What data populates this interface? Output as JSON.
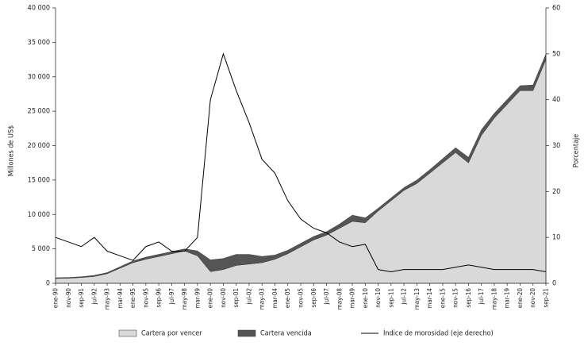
{
  "chart_data": {
    "type": "stacked_area_line",
    "ylabel": "Millones de US$",
    "y2label": "Porcentaje",
    "categories": [
      "ene-90",
      "nov-90",
      "sep-91",
      "jul-92",
      "may-93",
      "mar-94",
      "ene-95",
      "nov-95",
      "sep-96",
      "jul-97",
      "may-98",
      "mar-99",
      "ene-00",
      "nov-00",
      "sep-01",
      "jul-02",
      "may-03",
      "mar-04",
      "ene-05",
      "nov-05",
      "sep-06",
      "jul-07",
      "may-08",
      "mar-09",
      "ene-10",
      "nov-10",
      "sep-11",
      "jul-12",
      "may-13",
      "mar-14",
      "ene-15",
      "nov-15",
      "sep-16",
      "jul-17",
      "may-18",
      "mar-19",
      "ene-20",
      "nov-20",
      "sep-21"
    ],
    "series": [
      {
        "name": "Cartera por vencer",
        "color": "#d9d9d9",
        "stack": true,
        "values": [
          700,
          750,
          850,
          1000,
          1400,
          2200,
          3000,
          3500,
          3900,
          4300,
          4700,
          4000,
          1700,
          2000,
          2600,
          2800,
          3000,
          3500,
          4300,
          5300,
          6300,
          7000,
          8000,
          9000,
          8800,
          10500,
          12000,
          13500,
          14500,
          16000,
          17500,
          19000,
          17500,
          21500,
          24000,
          26000,
          28000,
          28000,
          32500
        ]
      },
      {
        "name": "Cartera vencida",
        "color": "#555555",
        "stack": true,
        "values": [
          100,
          100,
          100,
          150,
          150,
          200,
          250,
          300,
          300,
          300,
          300,
          700,
          1700,
          1600,
          1600,
          1400,
          900,
          600,
          500,
          500,
          500,
          500,
          600,
          900,
          700,
          400,
          400,
          400,
          500,
          500,
          600,
          700,
          800,
          800,
          700,
          700,
          700,
          800,
          800
        ]
      },
      {
        "name": "Índice de morosidad (eje derecho)",
        "color": "#000000",
        "axis": "y2",
        "values": [
          10,
          9,
          8,
          10,
          7,
          6,
          5,
          8,
          9,
          7,
          7,
          10,
          40,
          50,
          42,
          35,
          27,
          24,
          18,
          14,
          12,
          11,
          9,
          8,
          8.5,
          3,
          2.5,
          3,
          3,
          3,
          3,
          3.5,
          4,
          3.5,
          3,
          3,
          3,
          3,
          2.5
        ]
      }
    ],
    "ylim": [
      0,
      40000
    ],
    "yticks": [
      0,
      {
        "value": 5000,
        "label": "5 000"
      },
      {
        "value": 10000,
        "label": "10 000"
      },
      {
        "value": 15000,
        "label": "15 000"
      },
      {
        "value": 20000,
        "label": "20 000"
      },
      {
        "value": 25000,
        "label": "25 000"
      },
      {
        "value": 30000,
        "label": "30 000"
      },
      {
        "value": 35000,
        "label": "35 000"
      },
      {
        "value": 40000,
        "label": "40 000"
      }
    ],
    "y2lim": [
      0,
      60
    ],
    "y2ticks": [
      0,
      10,
      20,
      30,
      40,
      50,
      60
    ],
    "legend": "bottom"
  }
}
